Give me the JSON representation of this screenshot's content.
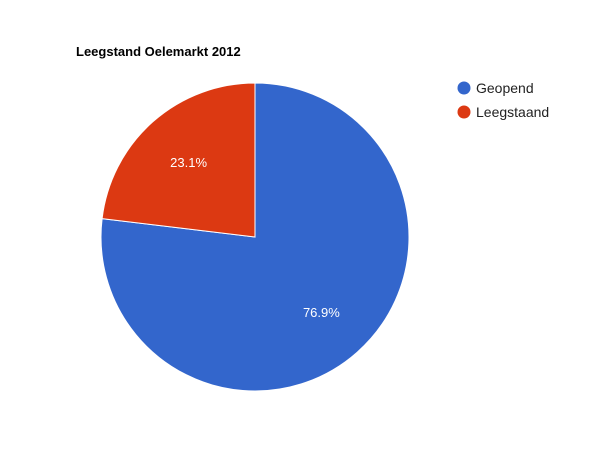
{
  "chart_data": {
    "type": "pie",
    "title": "Leegstand Oelemarkt 2012",
    "legend_position": "right",
    "slices": [
      {
        "label": "Geopend",
        "value": 76.9,
        "display": "76.9%",
        "color": "#3366cc"
      },
      {
        "label": "Leegstaand",
        "value": 23.1,
        "display": "23.1%",
        "color": "#dc3912"
      }
    ]
  }
}
